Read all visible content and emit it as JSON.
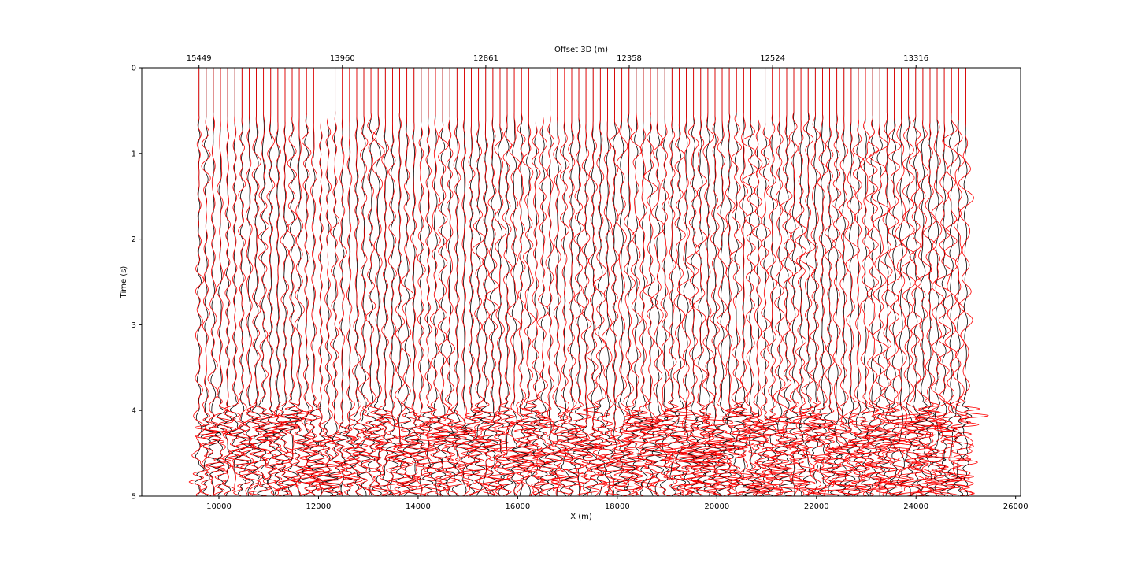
{
  "chart_data": {
    "type": "line",
    "title": "",
    "xlabel": "X (m)",
    "ylabel": "Time (s)",
    "top_axis_label": "Offset 3D (m)",
    "xlim": [
      8450,
      26100
    ],
    "ylim": [
      5,
      0
    ],
    "y_inverted": true,
    "x_ticks": [
      10000,
      12000,
      14000,
      16000,
      18000,
      20000,
      22000,
      24000,
      26000
    ],
    "y_ticks": [
      0,
      1,
      2,
      3,
      4,
      5
    ],
    "top_ticks": [
      {
        "x": 9600,
        "label": "15449"
      },
      {
        "x": 12480,
        "label": "13960"
      },
      {
        "x": 15360,
        "label": "12861"
      },
      {
        "x": 18240,
        "label": "12358"
      },
      {
        "x": 21120,
        "label": "12524"
      },
      {
        "x": 24000,
        "label": "13316"
      }
    ],
    "traces": {
      "first_x": 9600,
      "last_x": 25000,
      "count": 108,
      "first_arrival_time": 0.5,
      "strong_event_time_range": [
        3.9,
        5.0
      ]
    },
    "series": [
      {
        "color": "#000000"
      },
      {
        "color": "#ff0000"
      }
    ],
    "grid": false
  }
}
